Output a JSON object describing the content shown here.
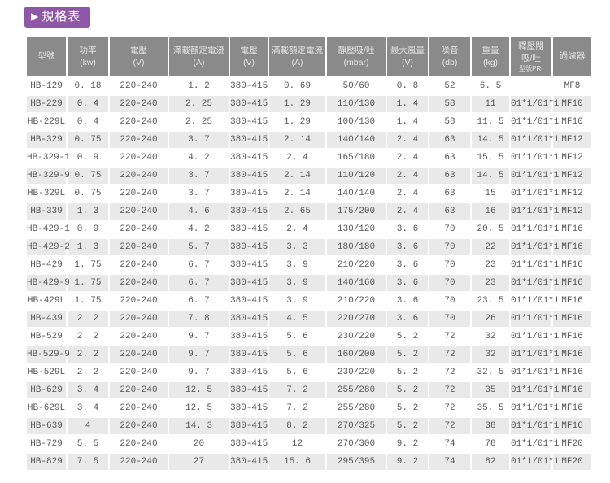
{
  "badge": {
    "arrow": "▶",
    "label": "規格表"
  },
  "colors": {
    "accent": "#8e57a8",
    "header_bg": "#8a8a8a",
    "header_text": "#e4e4e4",
    "row_alt": "#e9e9e9",
    "cell_text": "#555555"
  },
  "table": {
    "columns": [
      {
        "label": "型號",
        "sub": "",
        "sub2": ""
      },
      {
        "label": "功率",
        "sub": "(kw)",
        "sub2": ""
      },
      {
        "label": "電壓",
        "sub": "(V)",
        "sub2": ""
      },
      {
        "label": "滿載額定電流",
        "sub": "(A)",
        "sub2": ""
      },
      {
        "label": "電壓",
        "sub": "(V)",
        "sub2": ""
      },
      {
        "label": "滿載額定電流",
        "sub": "(A)",
        "sub2": ""
      },
      {
        "label": "靜壓吸/吐",
        "sub": "(mbar)",
        "sub2": ""
      },
      {
        "label": "最大風量",
        "sub": "(V)",
        "sub2": ""
      },
      {
        "label": "噪音",
        "sub": "(db)",
        "sub2": ""
      },
      {
        "label": "重量",
        "sub": "(kg)",
        "sub2": ""
      },
      {
        "label": "釋壓閥",
        "sub": "吸/吐",
        "sub2": "型號PR-"
      },
      {
        "label": "過濾器",
        "sub": "",
        "sub2": ""
      }
    ],
    "rows": [
      [
        "HB-129",
        "0. 18",
        "220-240",
        "1. 2",
        "380-415",
        "0. 69",
        "50/60",
        "0. 8",
        "52",
        "6. 5",
        "",
        "MF8"
      ],
      [
        "HB-229",
        "0. 4",
        "220-240",
        "2. 25",
        "380-415",
        "1. 29",
        "110/130",
        "1. 4",
        "58",
        "11",
        "01*1/01*1",
        "MF10"
      ],
      [
        "HB-229L",
        "0. 4",
        "220-240",
        "2. 25",
        "380-415",
        "1. 29",
        "100/130",
        "1. 4",
        "58",
        "11. 5",
        "01*1/01*1",
        "MF10"
      ],
      [
        "HB-329",
        "0. 75",
        "220-240",
        "3. 7",
        "380-415",
        "2. 14",
        "140/140",
        "2. 4",
        "63",
        "14. 5",
        "01*1/01*1",
        "MF12"
      ],
      [
        "HB-329-1",
        "0. 9",
        "220-240",
        "4. 2",
        "380-415",
        "2. 4",
        "165/180",
        "2. 4",
        "63",
        "15. 5",
        "01*1/01*1",
        "MF12"
      ],
      [
        "HB-329-9",
        "0. 75",
        "220-240",
        "3. 7",
        "380-415",
        "2. 14",
        "110/120",
        "2. 4",
        "63",
        "14. 5",
        "01*1/01*1",
        "MF12"
      ],
      [
        "HB-329L",
        "0. 75",
        "220-240",
        "3. 7",
        "380-415",
        "2. 14",
        "140/140",
        "2. 4",
        "63",
        "15",
        "01*1/01*1",
        "MF12"
      ],
      [
        "HB-339",
        "1. 3",
        "220-240",
        "4. 6",
        "380-415",
        "2. 65",
        "175/200",
        "2. 4",
        "63",
        "16",
        "01*1/01*1",
        "MF12"
      ],
      [
        "HB-429-1",
        "0. 9",
        "220-240",
        "4. 2",
        "380-415",
        "2. 4",
        "130/120",
        "3. 6",
        "70",
        "20. 5",
        "01*1/01*1",
        "MF16"
      ],
      [
        "HB-429-2",
        "1. 3",
        "220-240",
        "5. 7",
        "380-415",
        "3. 3",
        "180/180",
        "3. 6",
        "70",
        "22",
        "01*1/01*1",
        "MF16"
      ],
      [
        "HB-429",
        "1. 75",
        "220-240",
        "6. 7",
        "380-415",
        "3. 9",
        "210/220",
        "3. 6",
        "70",
        "23",
        "01*1/01*1",
        "MF16"
      ],
      [
        "HB-429-9",
        "1. 75",
        "220-240",
        "6. 7",
        "380-415",
        "3. 9",
        "140/160",
        "3. 6",
        "70",
        "23",
        "01*1/01*1",
        "MF16"
      ],
      [
        "HB-429L",
        "1. 75",
        "220-240",
        "6. 7",
        "380-415",
        "3. 9",
        "210/220",
        "3. 6",
        "70",
        "23. 5",
        "01*1/01*1",
        "MF16"
      ],
      [
        "HB-439",
        "2. 2",
        "220-240",
        "7. 8",
        "380-415",
        "4. 5",
        "220/270",
        "3. 6",
        "70",
        "26",
        "01*1/01*1",
        "MF16"
      ],
      [
        "HB-529",
        "2. 2",
        "220-240",
        "9. 7",
        "380-415",
        "5. 6",
        "230/220",
        "5. 2",
        "72",
        "32",
        "01*1/01*1",
        "MF16"
      ],
      [
        "HB-529-9",
        "2. 2",
        "220-240",
        "9. 7",
        "380-415",
        "5. 6",
        "160/200",
        "5. 2",
        "72",
        "32",
        "01*1/01*1",
        "MF16"
      ],
      [
        "HB-529L",
        "2. 2",
        "220-240",
        "9. 7",
        "380-415",
        "5. 6",
        "230/220",
        "5. 2",
        "72",
        "32. 5",
        "01*1/01*1",
        "MF16"
      ],
      [
        "HB-629",
        "3. 4",
        "220-240",
        "12. 5",
        "380-415",
        "7. 2",
        "255/280",
        "5. 2",
        "72",
        "35",
        "01*1/01*1",
        "MF16"
      ],
      [
        "HB-629L",
        "3. 4",
        "220-240",
        "12. 5",
        "380-415",
        "7. 2",
        "255/280",
        "5. 2",
        "72",
        "35. 5",
        "01*1/01*1",
        "MF16"
      ],
      [
        "HB-639",
        "4",
        "220-240",
        "14. 3",
        "380-415",
        "8. 2",
        "270/325",
        "5. 2",
        "72",
        "38",
        "01*1/01*1",
        "MF16"
      ],
      [
        "HB-729",
        "5. 5",
        "220-240",
        "20",
        "380-415",
        "12",
        "270/300",
        "9. 2",
        "74",
        "78",
        "01*1/01*1",
        "MF20"
      ],
      [
        "HB-829",
        "7. 5",
        "220-240",
        "27",
        "380-415",
        "15. 6",
        "295/395",
        "9. 2",
        "74",
        "82",
        "01*1/01*1",
        "MF20"
      ]
    ]
  }
}
